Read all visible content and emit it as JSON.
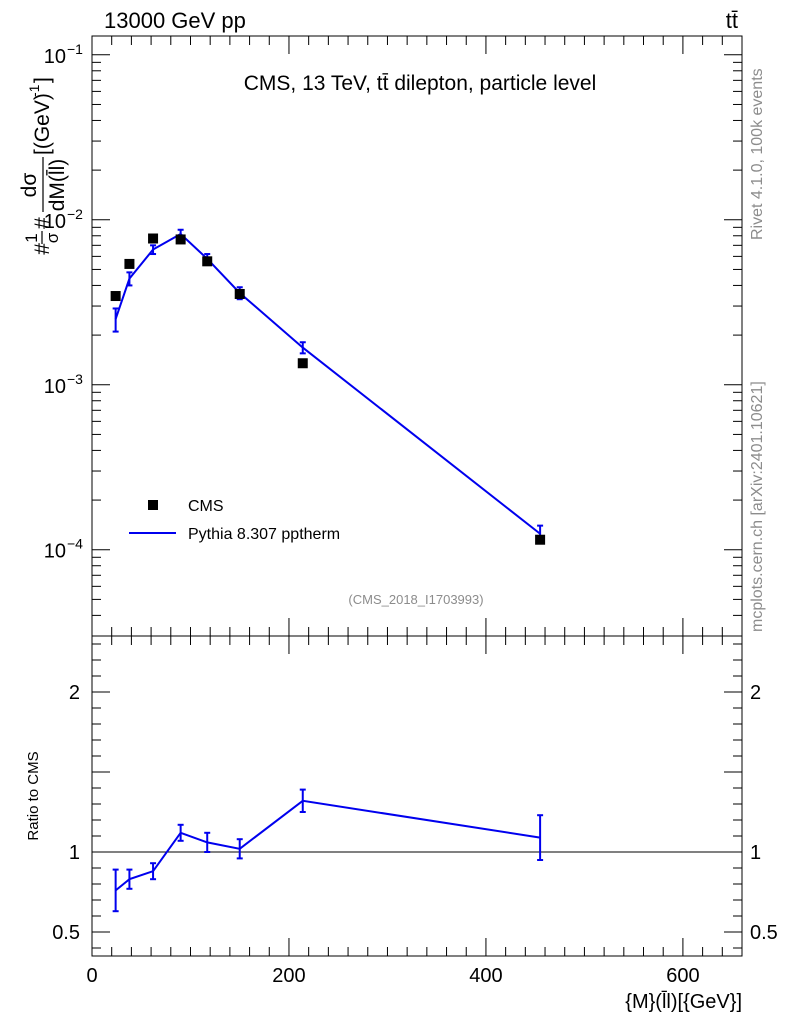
{
  "header": {
    "left": "13000 GeV pp",
    "right": "tt̄"
  },
  "side_labels": {
    "rivet": "Rivet 4.1.0,  100k events",
    "mcplots": "mcplots.cern.ch [arXiv:2401.10621]"
  },
  "colors": {
    "data": "#000000",
    "mc": "#0000ee",
    "watermark": "#8c8c8c"
  },
  "chart_data": [
    {
      "type": "line",
      "title": "CMS, 13 TeV, tt̄ dilepton, particle level",
      "watermark": "(CMS_2018_I1703993)",
      "ylabel_parts": {
        "prefix": "#",
        "frac_num": "1",
        "frac_den": "σ",
        "mid": "#",
        "dnum": "dσ",
        "dden": "dM(l̄l)",
        "units": "[(GeV)",
        "units_exp": "-1",
        "units_close": "]"
      },
      "yscale": "log",
      "ylim": [
        3e-05,
        0.13
      ],
      "xlim": [
        0,
        660
      ],
      "yticks": [
        {
          "value": 0.1,
          "base": "10",
          "exp": "−1"
        },
        {
          "value": 0.01,
          "base": "10",
          "exp": "−2"
        },
        {
          "value": 0.001,
          "base": "10",
          "exp": "−3"
        },
        {
          "value": 0.0001,
          "base": "10",
          "exp": "−4"
        }
      ],
      "series": [
        {
          "name": "CMS",
          "marker": "square",
          "x": [
            24,
            38,
            62,
            90,
            117,
            150,
            214,
            455
          ],
          "y": [
            0.00345,
            0.0054,
            0.0077,
            0.0076,
            0.0056,
            0.00355,
            0.00135,
            0.000115
          ]
        },
        {
          "name": "Pythia 8.307 pptherm",
          "marker": "line",
          "x": [
            24,
            38,
            62,
            90,
            117,
            150,
            214,
            455
          ],
          "y": [
            0.0025,
            0.0044,
            0.0066,
            0.0082,
            0.0058,
            0.0036,
            0.00168,
            0.000125
          ],
          "err": [
            0.0004,
            0.0004,
            0.0004,
            0.0005,
            0.0004,
            0.0003,
            0.00013,
            1.5e-05
          ]
        }
      ],
      "legend": {
        "position": "bottom-left",
        "entries": [
          "CMS",
          "Pythia 8.307 pptherm"
        ]
      }
    },
    {
      "type": "line",
      "ylabel": "Ratio to CMS",
      "xlabel": "{M}(l̄l)[{GeV}]",
      "ylim": [
        0.35,
        2.35
      ],
      "xlim": [
        0,
        660
      ],
      "yticks": [
        {
          "value": 0.5,
          "label": "0.5"
        },
        {
          "value": 1,
          "label": "1"
        },
        {
          "value": 2,
          "label": "2"
        }
      ],
      "xticks": [
        {
          "value": 0,
          "label": "0"
        },
        {
          "value": 200,
          "label": "200"
        },
        {
          "value": 400,
          "label": "400"
        },
        {
          "value": 600,
          "label": "600"
        }
      ],
      "reference_line": 1,
      "series": [
        {
          "name": "Pythia 8.307 pptherm / CMS",
          "x": [
            24,
            38,
            62,
            90,
            117,
            150,
            214,
            455
          ],
          "y": [
            0.76,
            0.83,
            0.88,
            1.12,
            1.06,
            1.02,
            1.32,
            1.09
          ],
          "err": [
            0.13,
            0.06,
            0.05,
            0.05,
            0.06,
            0.06,
            0.07,
            0.14
          ]
        }
      ]
    }
  ]
}
